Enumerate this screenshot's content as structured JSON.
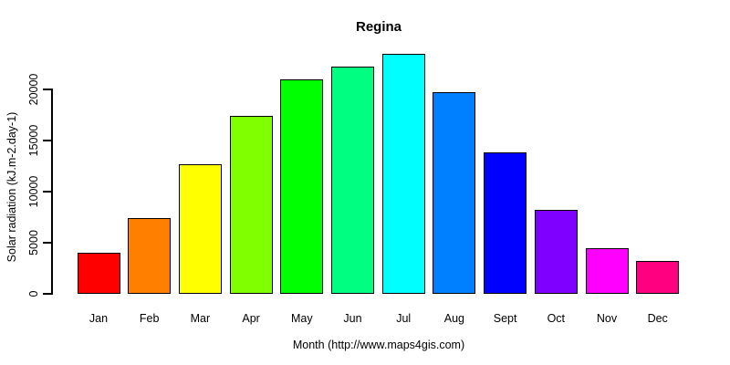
{
  "chart_data": {
    "type": "bar",
    "title": "Regina",
    "xlabel": "Month (http://www.maps4gis.com)",
    "ylabel": "Solar radiation (kJ.m-2.day-1)",
    "categories": [
      "Jan",
      "Feb",
      "Mar",
      "Apr",
      "May",
      "Jun",
      "Jul",
      "Aug",
      "Sept",
      "Oct",
      "Nov",
      "Dec"
    ],
    "values": [
      4000,
      7400,
      12700,
      17450,
      21000,
      22250,
      23450,
      19700,
      13800,
      8200,
      4450,
      3250
    ],
    "bar_colors": [
      "#FF0000",
      "#FF8000",
      "#FFFF00",
      "#80FF00",
      "#00FF00",
      "#00FF80",
      "#00FFFF",
      "#0080FF",
      "#0000FF",
      "#8000FF",
      "#FF00FF",
      "#FF0080"
    ],
    "bar_border_color": "#000000",
    "yticks": [
      0,
      5000,
      10000,
      15000,
      20000
    ],
    "ytick_labels": [
      "0",
      "5000",
      "10000",
      "15000",
      "20000"
    ],
    "ylim": [
      0,
      20000
    ],
    "grid": false,
    "legend": false,
    "axis_color": "#000000",
    "background_color": "#FFFFFF"
  }
}
